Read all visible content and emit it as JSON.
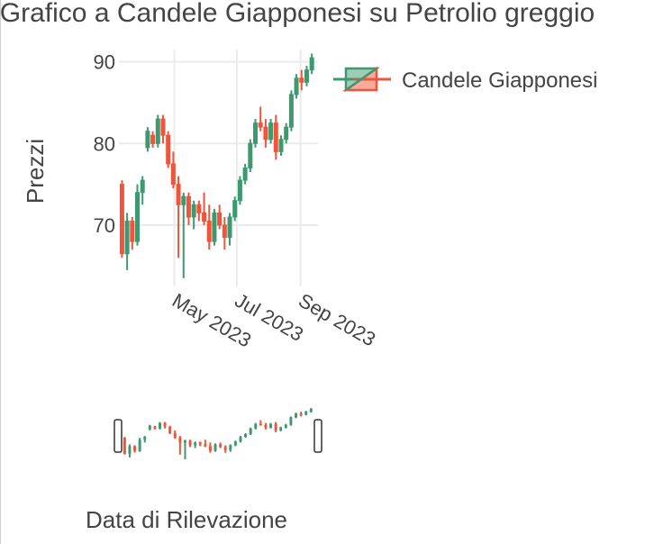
{
  "chart_data": {
    "type": "candlestick",
    "title": "Grafico a Candele Giapponesi su Petrolio greggio",
    "xlabel": "Data di Rilevazione",
    "ylabel": "Prezzi",
    "x_ticks": [
      "May 2023",
      "Jul 2023",
      "Sep 2023"
    ],
    "y_ticks": [
      70,
      80,
      90
    ],
    "ylim": [
      62.5,
      91.5
    ],
    "xlim": [
      "2023-03-08",
      "2023-09-18"
    ],
    "grid": true,
    "legend": {
      "position": "top-right",
      "entries": [
        "Candele Giapponesi"
      ]
    },
    "increasing_color": "#3D9970",
    "decreasing_color": "#EF553B",
    "rangeslider": true,
    "candles": [
      {
        "date": "2023-03-11",
        "open": 75.0,
        "high": 75.5,
        "low": 66.0,
        "close": 66.5
      },
      {
        "date": "2023-03-16",
        "open": 66.5,
        "high": 71.5,
        "low": 64.5,
        "close": 70.5
      },
      {
        "date": "2023-03-21",
        "open": 70.5,
        "high": 71.0,
        "low": 67.0,
        "close": 68.0
      },
      {
        "date": "2023-03-26",
        "open": 68.0,
        "high": 75.0,
        "low": 67.5,
        "close": 74.0
      },
      {
        "date": "2023-03-31",
        "open": 74.0,
        "high": 76.0,
        "low": 72.5,
        "close": 75.5
      },
      {
        "date": "2023-04-05",
        "open": 79.5,
        "high": 82.0,
        "low": 79.0,
        "close": 81.5
      },
      {
        "date": "2023-04-10",
        "open": 81.0,
        "high": 81.5,
        "low": 79.5,
        "close": 80.0
      },
      {
        "date": "2023-04-15",
        "open": 80.0,
        "high": 83.5,
        "low": 79.5,
        "close": 83.0
      },
      {
        "date": "2023-04-20",
        "open": 83.0,
        "high": 83.5,
        "low": 80.0,
        "close": 81.0
      },
      {
        "date": "2023-04-25",
        "open": 81.0,
        "high": 81.5,
        "low": 77.0,
        "close": 77.5
      },
      {
        "date": "2023-04-30",
        "open": 77.5,
        "high": 79.0,
        "low": 74.5,
        "close": 75.0
      },
      {
        "date": "2023-05-05",
        "open": 75.0,
        "high": 76.0,
        "low": 66.0,
        "close": 72.5
      },
      {
        "date": "2023-05-10",
        "open": 72.5,
        "high": 74.0,
        "low": 63.5,
        "close": 73.5
      },
      {
        "date": "2023-05-15",
        "open": 73.5,
        "high": 74.0,
        "low": 70.0,
        "close": 71.0
      },
      {
        "date": "2023-05-20",
        "open": 71.0,
        "high": 73.0,
        "low": 69.5,
        "close": 72.5
      },
      {
        "date": "2023-05-25",
        "open": 72.5,
        "high": 73.0,
        "low": 70.5,
        "close": 71.5
      },
      {
        "date": "2023-05-30",
        "open": 71.5,
        "high": 74.0,
        "low": 70.0,
        "close": 70.5
      },
      {
        "date": "2023-06-04",
        "open": 70.5,
        "high": 72.5,
        "low": 67.0,
        "close": 68.0
      },
      {
        "date": "2023-06-09",
        "open": 68.0,
        "high": 72.0,
        "low": 67.5,
        "close": 71.5
      },
      {
        "date": "2023-06-14",
        "open": 71.5,
        "high": 72.5,
        "low": 69.5,
        "close": 70.0
      },
      {
        "date": "2023-06-19",
        "open": 70.0,
        "high": 71.0,
        "low": 67.0,
        "close": 68.5
      },
      {
        "date": "2023-06-24",
        "open": 68.5,
        "high": 71.5,
        "low": 67.5,
        "close": 71.0
      },
      {
        "date": "2023-06-29",
        "open": 71.0,
        "high": 73.5,
        "low": 70.5,
        "close": 73.0
      },
      {
        "date": "2023-07-04",
        "open": 73.0,
        "high": 76.0,
        "low": 72.5,
        "close": 75.5
      },
      {
        "date": "2023-07-09",
        "open": 75.5,
        "high": 77.5,
        "low": 75.0,
        "close": 77.0
      },
      {
        "date": "2023-07-14",
        "open": 77.0,
        "high": 80.5,
        "low": 76.5,
        "close": 80.0
      },
      {
        "date": "2023-07-19",
        "open": 80.0,
        "high": 83.0,
        "low": 79.5,
        "close": 82.5
      },
      {
        "date": "2023-07-24",
        "open": 82.5,
        "high": 84.5,
        "low": 81.5,
        "close": 82.0
      },
      {
        "date": "2023-07-29",
        "open": 82.0,
        "high": 83.0,
        "low": 79.5,
        "close": 80.5
      },
      {
        "date": "2023-08-03",
        "open": 80.5,
        "high": 83.0,
        "low": 80.0,
        "close": 82.5
      },
      {
        "date": "2023-08-08",
        "open": 82.5,
        "high": 83.5,
        "low": 78.0,
        "close": 79.0
      },
      {
        "date": "2023-08-13",
        "open": 79.0,
        "high": 81.0,
        "low": 78.5,
        "close": 80.5
      },
      {
        "date": "2023-08-18",
        "open": 80.5,
        "high": 82.5,
        "low": 80.0,
        "close": 82.0
      },
      {
        "date": "2023-08-23",
        "open": 82.0,
        "high": 86.5,
        "low": 81.5,
        "close": 86.0
      },
      {
        "date": "2023-08-28",
        "open": 86.0,
        "high": 88.5,
        "low": 85.5,
        "close": 88.0
      },
      {
        "date": "2023-09-02",
        "open": 88.0,
        "high": 89.0,
        "low": 86.5,
        "close": 87.5
      },
      {
        "date": "2023-09-07",
        "open": 87.5,
        "high": 89.5,
        "low": 87.0,
        "close": 89.0
      },
      {
        "date": "2023-09-12",
        "open": 89.0,
        "high": 91.0,
        "low": 88.5,
        "close": 90.5
      }
    ]
  }
}
